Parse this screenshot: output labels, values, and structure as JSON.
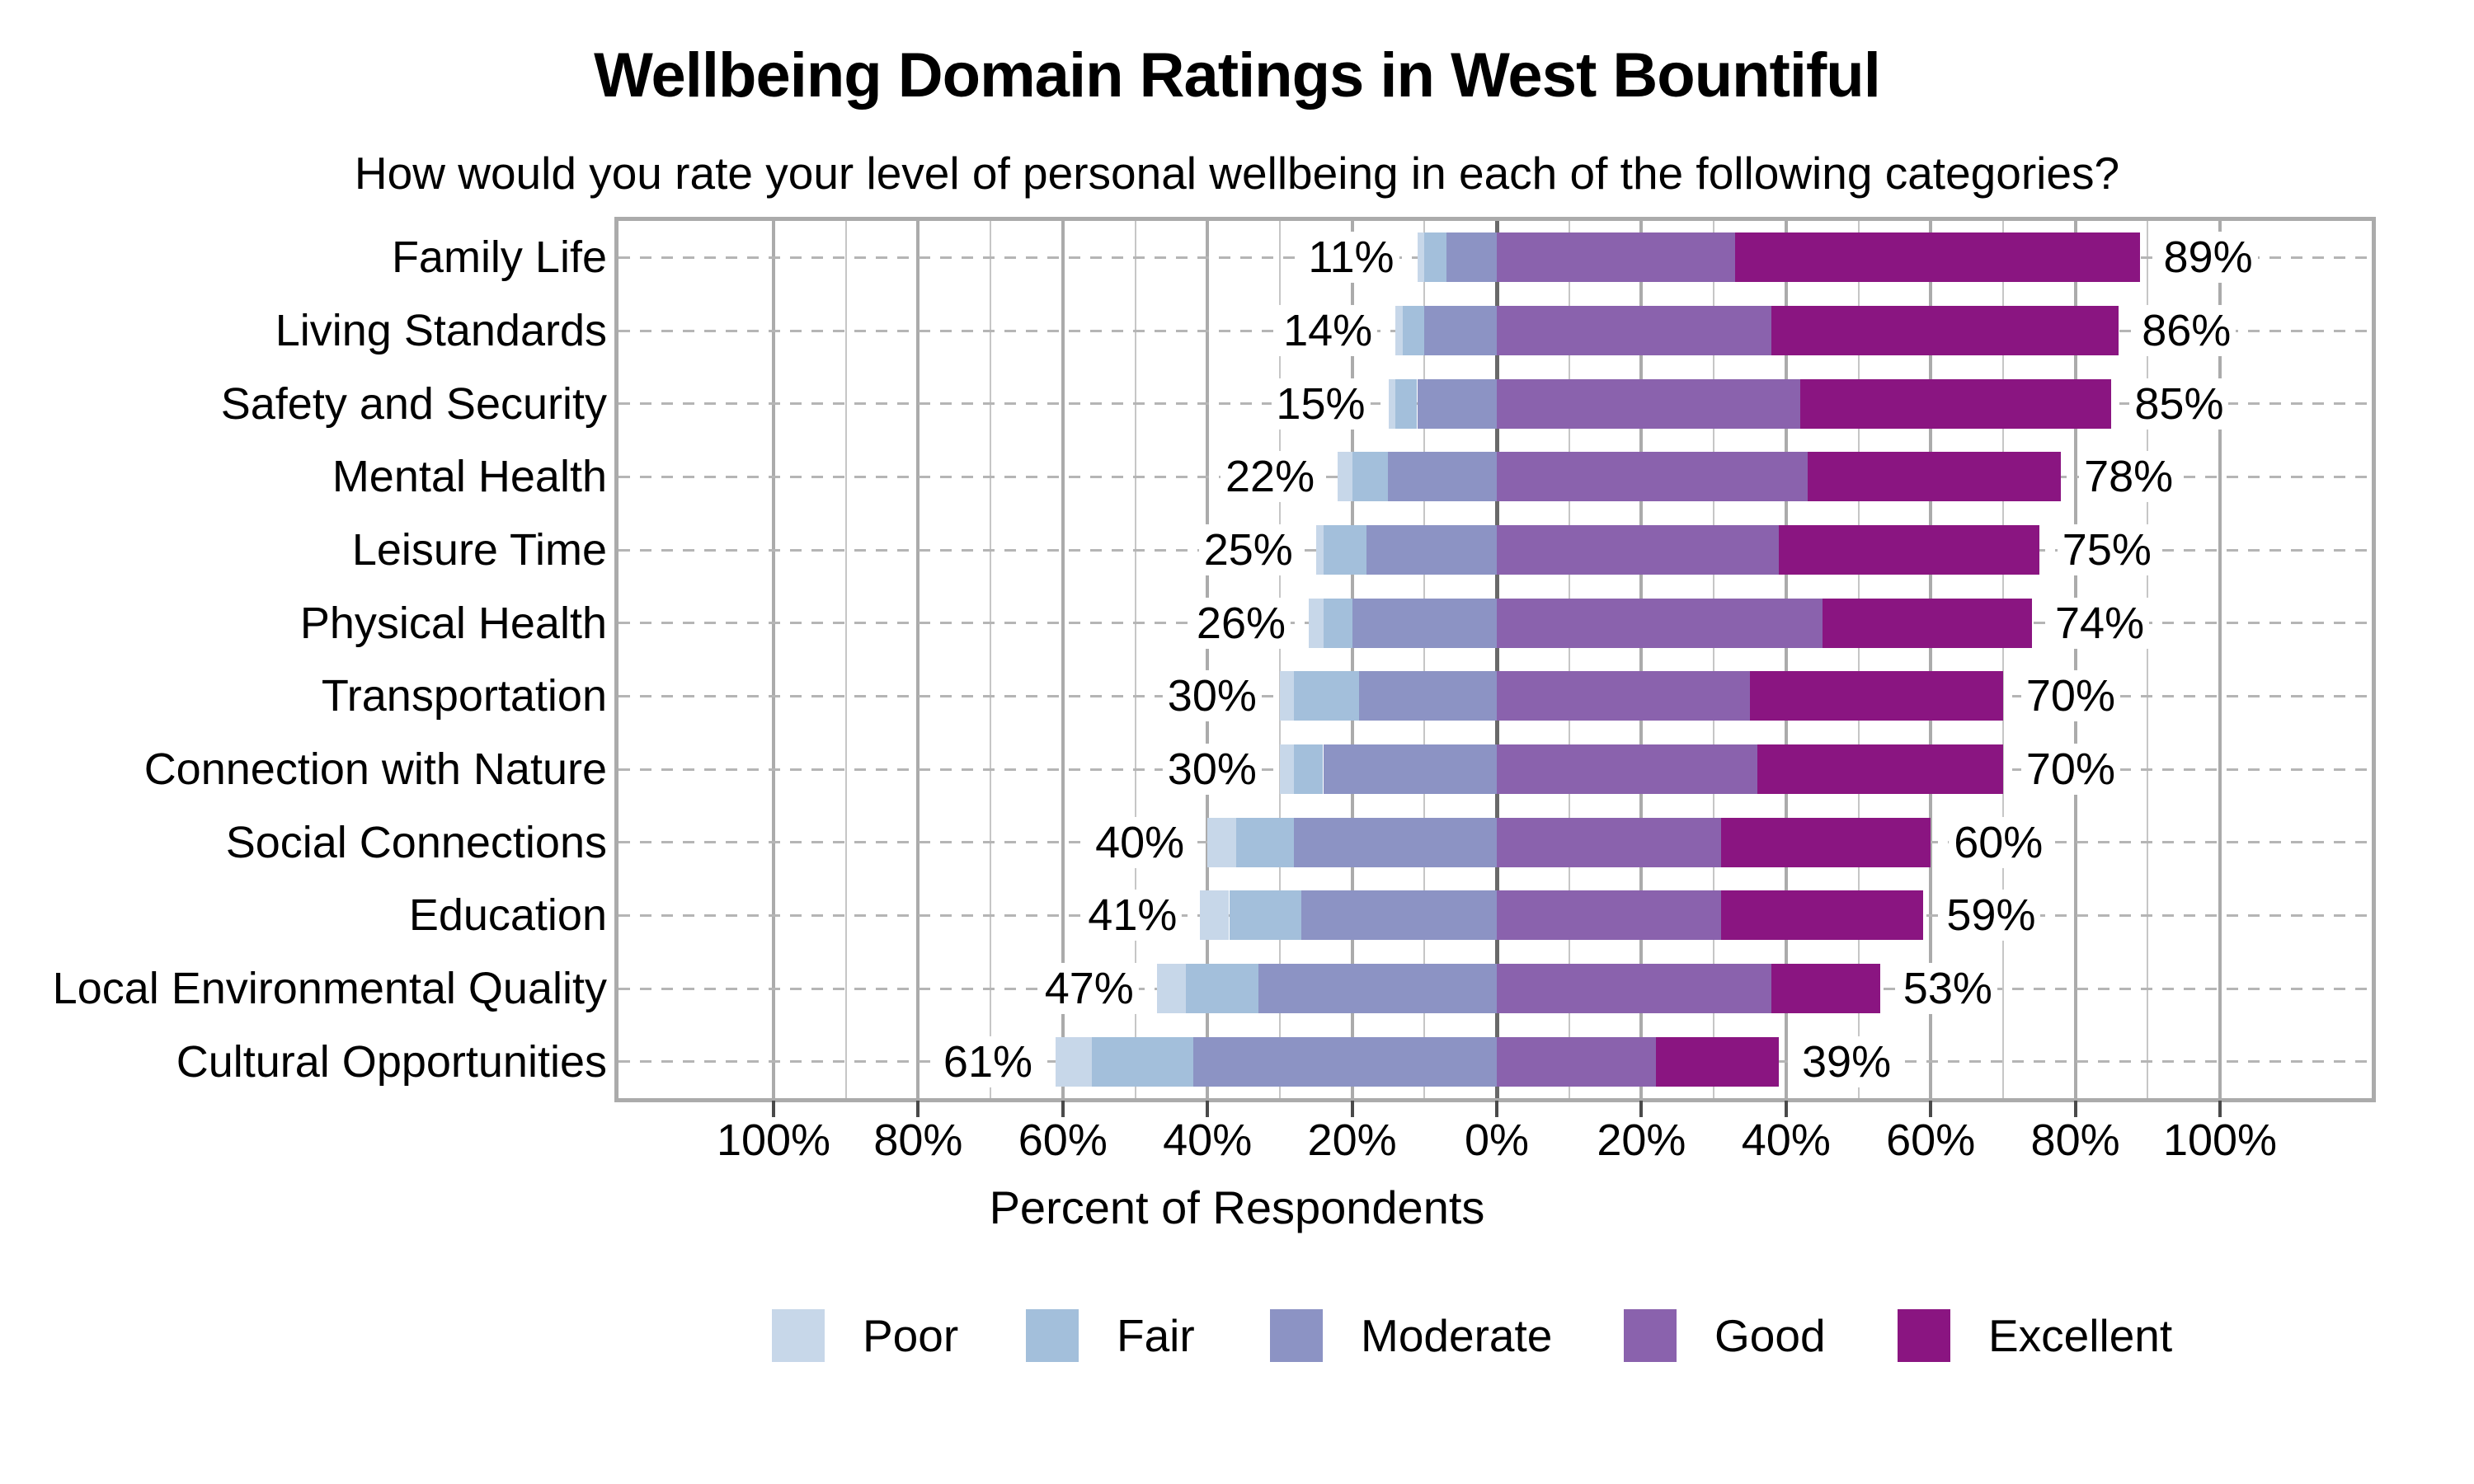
{
  "title": "Wellbeing Domain Ratings in West Bountiful",
  "subtitle": "How would you rate your level of personal wellbeing in each of the following categories?",
  "chart_data": {
    "type": "bar",
    "variant": "diverging-stacked-likert",
    "title": "Wellbeing Domain Ratings in West Bountiful",
    "subtitle": "How would you rate your level of personal wellbeing in each of the following categories?",
    "xlabel": "Percent of Respondents",
    "xlim": [
      -121,
      121
    ],
    "grid": "on",
    "x_tick_values": [
      -100,
      -80,
      -60,
      -40,
      -20,
      0,
      20,
      40,
      60,
      80,
      100
    ],
    "x_tick_labels": [
      "100%",
      "80%",
      "60%",
      "40%",
      "20%",
      "0%",
      "20%",
      "40%",
      "60%",
      "80%",
      "100%"
    ],
    "negative_stack": [
      "Poor",
      "Fair",
      "Moderate"
    ],
    "positive_stack": [
      "Good",
      "Excellent"
    ],
    "legend_position": "bottom",
    "series_colors": {
      "Poor": "#c7d7e9",
      "Fair": "#a3bfdb",
      "Moderate": "#8c93c4",
      "Good": "#8a62ad",
      "Excellent": "#8a1581"
    },
    "legend": [
      {
        "label": "Poor",
        "color": "#c7d7e9"
      },
      {
        "label": "Fair",
        "color": "#a3bfdb"
      },
      {
        "label": "Moderate",
        "color": "#8c93c4"
      },
      {
        "label": "Good",
        "color": "#8a62ad"
      },
      {
        "label": "Excellent",
        "color": "#8a1581"
      }
    ],
    "rows": [
      {
        "category": "Family Life",
        "left_total_label": "11%",
        "right_total_label": "89%",
        "values": {
          "Poor": 1,
          "Fair": 3,
          "Moderate": 7,
          "Good": 33,
          "Excellent": 56
        }
      },
      {
        "category": "Living Standards",
        "left_total_label": "14%",
        "right_total_label": "86%",
        "values": {
          "Poor": 1,
          "Fair": 3,
          "Moderate": 10,
          "Good": 38,
          "Excellent": 48
        }
      },
      {
        "category": "Safety and Security",
        "left_total_label": "15%",
        "right_total_label": "85%",
        "values": {
          "Poor": 1,
          "Fair": 3,
          "Moderate": 11,
          "Good": 42,
          "Excellent": 43
        }
      },
      {
        "category": "Mental Health",
        "left_total_label": "22%",
        "right_total_label": "78%",
        "values": {
          "Poor": 2,
          "Fair": 5,
          "Moderate": 15,
          "Good": 43,
          "Excellent": 35
        }
      },
      {
        "category": "Leisure Time",
        "left_total_label": "25%",
        "right_total_label": "75%",
        "values": {
          "Poor": 1,
          "Fair": 6,
          "Moderate": 18,
          "Good": 39,
          "Excellent": 36
        }
      },
      {
        "category": "Physical Health",
        "left_total_label": "26%",
        "right_total_label": "74%",
        "values": {
          "Poor": 2,
          "Fair": 4,
          "Moderate": 20,
          "Good": 45,
          "Excellent": 29
        }
      },
      {
        "category": "Transportation",
        "left_total_label": "30%",
        "right_total_label": "70%",
        "values": {
          "Poor": 2,
          "Fair": 9,
          "Moderate": 19,
          "Good": 35,
          "Excellent": 35
        }
      },
      {
        "category": "Connection with Nature",
        "left_total_label": "30%",
        "right_total_label": "70%",
        "values": {
          "Poor": 2,
          "Fair": 4,
          "Moderate": 24,
          "Good": 36,
          "Excellent": 34
        }
      },
      {
        "category": "Social Connections",
        "left_total_label": "40%",
        "right_total_label": "60%",
        "values": {
          "Poor": 4,
          "Fair": 8,
          "Moderate": 28,
          "Good": 31,
          "Excellent": 29
        }
      },
      {
        "category": "Education",
        "left_total_label": "41%",
        "right_total_label": "59%",
        "values": {
          "Poor": 4,
          "Fair": 10,
          "Moderate": 27,
          "Good": 31,
          "Excellent": 28
        }
      },
      {
        "category": "Local Environmental Quality",
        "left_total_label": "47%",
        "right_total_label": "53%",
        "values": {
          "Poor": 4,
          "Fair": 10,
          "Moderate": 33,
          "Good": 38,
          "Excellent": 15
        }
      },
      {
        "category": "Cultural Opportunities",
        "left_total_label": "61%",
        "right_total_label": "39%",
        "values": {
          "Poor": 5,
          "Fair": 14,
          "Moderate": 42,
          "Good": 22,
          "Excellent": 17
        }
      }
    ]
  }
}
